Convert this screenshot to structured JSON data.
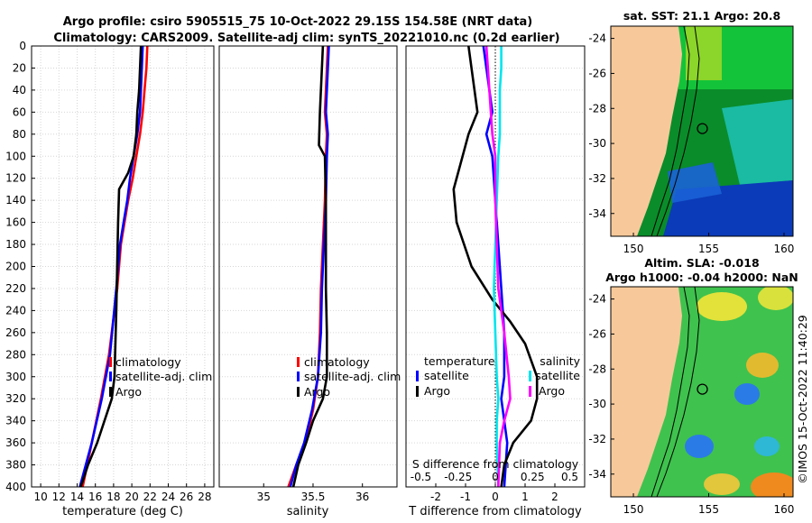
{
  "header": {
    "title_line1": "Argo profile: csiro 5905515_75 10-Oct-2022 29.15S 154.58E (NRT data)",
    "title_line2": "Climatology: CARS2009. Satellite-adj clim: synTS_20221010.nc (0.2d earlier)"
  },
  "colors": {
    "climatology": "#ff0000",
    "satellite": "#0000ff",
    "argo": "#000000",
    "s_diff_sat": "#00e5ee",
    "s_diff_argo": "#ff00ff"
  },
  "chart_data": [
    {
      "name": "temperature-profile",
      "type": "line",
      "xlabel": "temperature (deg C)",
      "ylabel": "",
      "xlim": [
        9,
        29
      ],
      "ylim": [
        400,
        0
      ],
      "xticks": [
        10,
        12,
        14,
        16,
        18,
        20,
        22,
        24,
        26,
        28
      ],
      "yticks": [
        0,
        20,
        40,
        60,
        80,
        100,
        120,
        140,
        160,
        180,
        200,
        220,
        240,
        260,
        280,
        300,
        320,
        340,
        360,
        380,
        400
      ],
      "legend_placement": "lower-right",
      "series": [
        {
          "name": "climatology",
          "color": "#ff0000",
          "x": [
            21.7,
            21.6,
            21.4,
            21.2,
            20.9,
            20.5,
            20.1,
            19.6,
            19.2,
            18.8,
            18.4,
            17.5,
            16.6,
            15.6,
            14.6
          ],
          "y": [
            0,
            20,
            40,
            60,
            80,
            100,
            120,
            140,
            160,
            180,
            220,
            280,
            320,
            360,
            400
          ]
        },
        {
          "name": "satellite-adj. clim",
          "color": "#0000ff",
          "x": [
            21.2,
            21.1,
            21.0,
            20.9,
            20.6,
            20.2,
            19.8,
            19.5,
            19.1,
            18.7,
            18.3,
            17.6,
            16.7,
            15.6,
            14.3
          ],
          "y": [
            0,
            20,
            40,
            60,
            80,
            100,
            120,
            140,
            160,
            180,
            220,
            280,
            320,
            360,
            400
          ]
        },
        {
          "name": "Argo",
          "color": "#000000",
          "x": [
            21.0,
            20.9,
            20.8,
            20.6,
            20.5,
            20.2,
            19.6,
            18.6,
            18.5,
            18.4,
            18.3,
            18.2,
            18.1,
            17.8,
            17.0,
            16.2,
            15.2,
            14.4
          ],
          "y": [
            0,
            20,
            40,
            60,
            80,
            100,
            115,
            130,
            160,
            200,
            240,
            270,
            300,
            320,
            340,
            360,
            380,
            400
          ]
        }
      ],
      "legend": [
        "climatology",
        "satellite-adj. clim",
        "Argo"
      ]
    },
    {
      "name": "salinity-profile",
      "type": "line",
      "xlabel": "salinity",
      "ylabel": "",
      "xlim": [
        34.55,
        36.35
      ],
      "ylim": [
        400,
        0
      ],
      "xticks": [
        35,
        35.5,
        36
      ],
      "legend_placement": "lower-right",
      "series": [
        {
          "name": "climatology",
          "color": "#ff0000",
          "x": [
            35.65,
            35.64,
            35.63,
            35.62,
            35.64,
            35.63,
            35.62,
            35.6,
            35.58,
            35.57,
            35.55,
            35.5,
            35.42,
            35.33,
            35.25
          ],
          "y": [
            0,
            20,
            40,
            60,
            80,
            100,
            140,
            180,
            220,
            260,
            300,
            330,
            360,
            380,
            400
          ]
        },
        {
          "name": "satellite-adj. clim",
          "color": "#0000ff",
          "x": [
            35.66,
            35.65,
            35.64,
            35.63,
            35.65,
            35.64,
            35.63,
            35.61,
            35.59,
            35.58,
            35.55,
            35.49,
            35.41,
            35.33,
            35.27
          ],
          "y": [
            0,
            20,
            40,
            60,
            80,
            100,
            140,
            180,
            220,
            260,
            300,
            330,
            360,
            380,
            400
          ]
        },
        {
          "name": "Argo",
          "color": "#000000",
          "x": [
            35.6,
            35.59,
            35.58,
            35.57,
            35.56,
            35.62,
            35.63,
            35.63,
            35.63,
            35.64,
            35.64,
            35.6,
            35.5,
            35.43,
            35.35,
            35.3
          ],
          "y": [
            0,
            20,
            40,
            60,
            90,
            100,
            140,
            180,
            220,
            260,
            300,
            320,
            340,
            360,
            380,
            400
          ]
        }
      ],
      "legend": [
        "climatology",
        "satellite-adj. clim",
        "Argo"
      ]
    },
    {
      "name": "difference-profile",
      "type": "line",
      "xlabel": "T difference from climatology",
      "top_label": "S difference from climatology",
      "xlim": [
        -3,
        3
      ],
      "ylim": [
        400,
        0
      ],
      "xticks": [
        -2,
        -1,
        0,
        1,
        2
      ],
      "s_xticks": [
        "-0.5",
        "-0.25",
        "0",
        "0.25",
        "0.5"
      ],
      "legend_left_title": "temperature",
      "legend_right_title": "salinity",
      "legend_left": [
        "satellite",
        "Argo"
      ],
      "legend_right": [
        "satellite",
        "Argo"
      ],
      "series": [
        {
          "name": "T satellite",
          "color": "#0000ff",
          "x": [
            -0.4,
            -0.3,
            -0.2,
            -0.1,
            -0.3,
            -0.1,
            0.0,
            0.1,
            0.2,
            0.3,
            0.3,
            0.2,
            0.3,
            0.4,
            0.3
          ],
          "y": [
            0,
            20,
            40,
            60,
            80,
            100,
            140,
            180,
            220,
            260,
            300,
            320,
            340,
            360,
            400
          ]
        },
        {
          "name": "T Argo",
          "color": "#000000",
          "x": [
            -0.9,
            -0.8,
            -0.7,
            -0.6,
            -0.9,
            -1.1,
            -1.3,
            -1.4,
            -1.3,
            -0.8,
            -0.1,
            0.5,
            1.0,
            1.4,
            1.4,
            1.2,
            0.6,
            0.3,
            0.2
          ],
          "y": [
            0,
            20,
            40,
            60,
            80,
            100,
            120,
            130,
            160,
            200,
            230,
            250,
            270,
            300,
            320,
            340,
            360,
            380,
            400
          ]
        },
        {
          "name": "S satellite",
          "color": "#00e5ee",
          "x": [
            0.04,
            0.04,
            0.03,
            0.03,
            0.03,
            0.02,
            0.01,
            0.0,
            -0.01,
            0.0,
            0.01,
            0.02,
            0.01,
            0.01,
            0.02
          ],
          "y": [
            0,
            20,
            40,
            60,
            80,
            100,
            140,
            180,
            220,
            260,
            300,
            320,
            340,
            360,
            400
          ]
        },
        {
          "name": "S Argo",
          "color": "#ff00ff",
          "x": [
            -0.06,
            -0.05,
            -0.04,
            -0.03,
            -0.02,
            0.0,
            0.0,
            0.01,
            0.02,
            0.06,
            0.09,
            0.1,
            0.06,
            0.03,
            0.02
          ],
          "y": [
            0,
            20,
            40,
            60,
            80,
            100,
            140,
            180,
            220,
            260,
            300,
            320,
            340,
            360,
            400
          ]
        }
      ]
    }
  ],
  "maps": {
    "sst": {
      "title": "sat. SST: 21.1 Argo: 20.8",
      "yticks": [
        "-24",
        "-26",
        "-28",
        "-30",
        "-32",
        "-34"
      ],
      "xticks": [
        "150",
        "155",
        "160"
      ]
    },
    "sla": {
      "title_line1": "Altim. SLA: -0.018",
      "title_line2": "Argo h1000: -0.04 h2000: NaN",
      "yticks": [
        "-24",
        "-26",
        "-28",
        "-30",
        "-32",
        "-34"
      ],
      "xticks": [
        "150",
        "155",
        "160"
      ]
    },
    "float_position": {
      "lon": 154.58,
      "lat": -29.15
    }
  },
  "footer": {
    "stamp": "©IMOS 15-Oct-2022 11:40:29"
  }
}
